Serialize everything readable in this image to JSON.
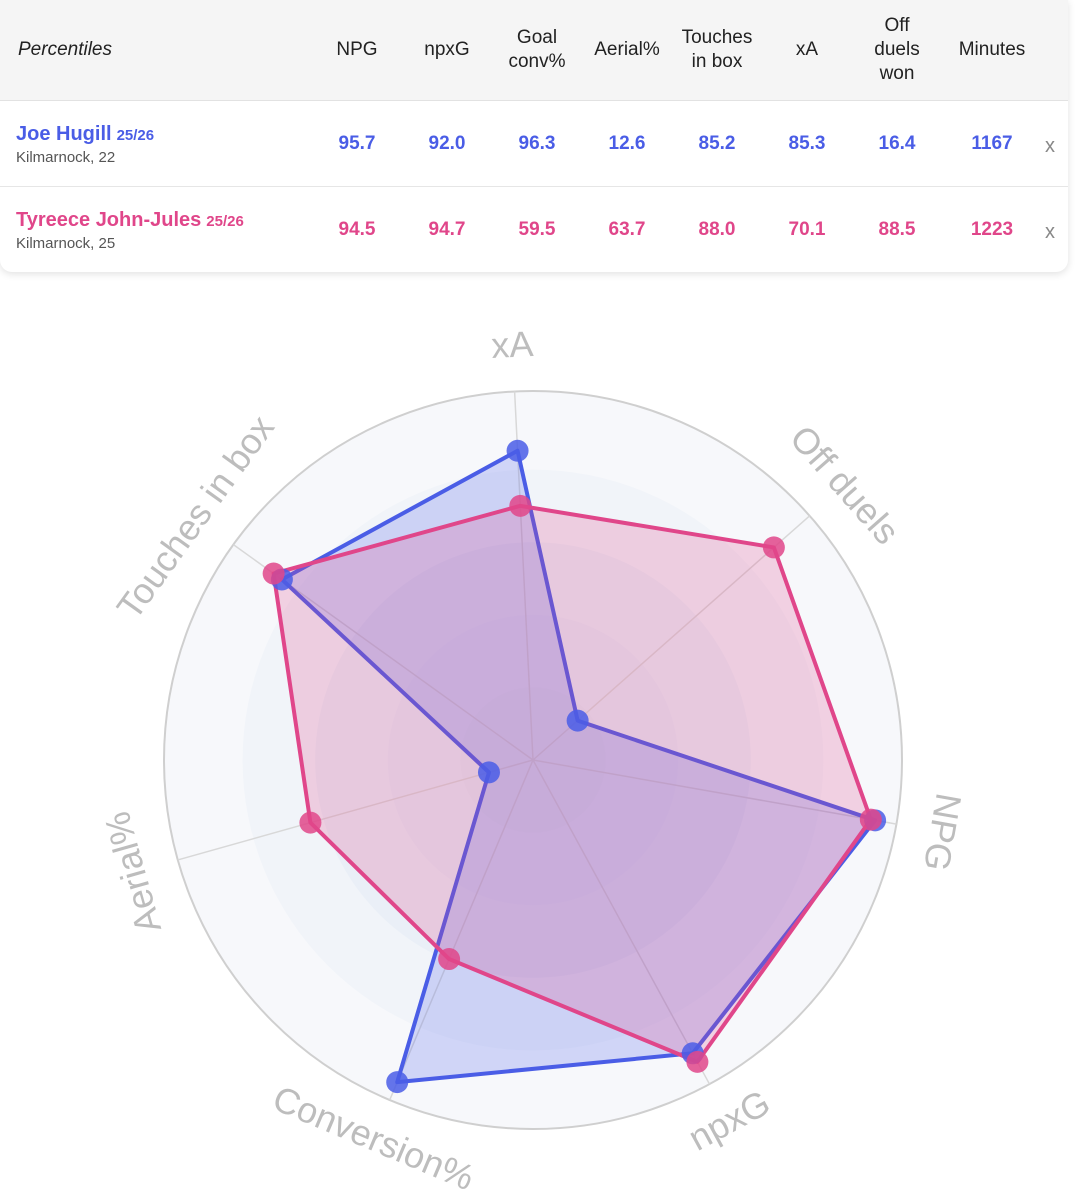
{
  "table": {
    "header": [
      "Percentiles",
      "NPG",
      "npxG",
      "Goal conv%",
      "Aerial%",
      "Touches in box",
      "xA",
      "Off duels won",
      "Minutes"
    ],
    "rows": [
      {
        "name": "Joe Hugill",
        "season": "25/26",
        "club": "Kilmarnock, 22",
        "minutes": "1167",
        "remove": "x"
      },
      {
        "name": "Tyreece John-Jules",
        "season": "25/26",
        "club": "Kilmarnock, 25",
        "minutes": "1223",
        "remove": "x"
      }
    ]
  },
  "chart_data": {
    "type": "radar",
    "categories": [
      "NPG",
      "npxG",
      "Conversion%",
      "Aerial%",
      "Touches in box",
      "xA",
      "Off duels"
    ],
    "rlim": [
      0,
      100
    ],
    "series": [
      {
        "name": "Joe Hugill",
        "color": "#4a5de6",
        "values": [
          95.7,
          92.0,
          96.3,
          12.6,
          85.2,
          85.3,
          16.4
        ],
        "value_labels": [
          "95.7",
          "92.0",
          "96.3",
          "12.6",
          "85.2",
          "85.3",
          "16.4"
        ]
      },
      {
        "name": "Tyreece John-Jules",
        "color": "#e0468a",
        "values": [
          94.5,
          94.7,
          59.5,
          63.7,
          88.0,
          70.1,
          88.5
        ],
        "value_labels": [
          "94.5",
          "94.7",
          "59.5",
          "63.7",
          "88.0",
          "70.1",
          "88.5"
        ]
      }
    ]
  }
}
